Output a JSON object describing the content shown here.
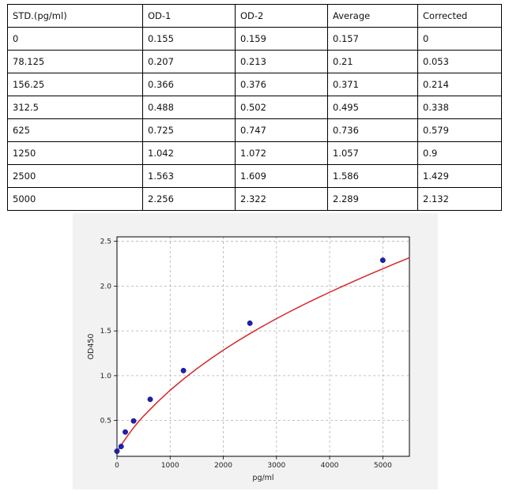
{
  "table": {
    "headers": [
      "STD.(pg/ml)",
      "OD-1",
      "OD-2",
      "Average",
      "Corrected"
    ],
    "rows": [
      [
        "0",
        "0.155",
        "0.159",
        "0.157",
        "0"
      ],
      [
        "78.125",
        "0.207",
        "0.213",
        "0.21",
        "0.053"
      ],
      [
        "156.25",
        "0.366",
        "0.376",
        "0.371",
        "0.214"
      ],
      [
        "312.5",
        "0.488",
        "0.502",
        "0.495",
        "0.338"
      ],
      [
        "625",
        "0.725",
        "0.747",
        "0.736",
        "0.579"
      ],
      [
        "1250",
        "1.042",
        "1.072",
        "1.057",
        "0.9"
      ],
      [
        "2500",
        "1.563",
        "1.609",
        "1.586",
        "1.429"
      ],
      [
        "5000",
        "2.256",
        "2.322",
        "2.289",
        "2.132"
      ]
    ]
  },
  "chart_data": {
    "type": "scatter",
    "title": "",
    "xlabel": "pg/ml",
    "ylabel": "OD450",
    "xlim": [
      0,
      5500
    ],
    "ylim": [
      0.1,
      2.55
    ],
    "xticks": [
      0,
      1000,
      2000,
      3000,
      4000,
      5000
    ],
    "yticks": [
      0.5,
      1.0,
      1.5,
      2.0,
      2.5
    ],
    "xtick_labels": [
      "0",
      "1000",
      "2000",
      "3000",
      "4000",
      "5000"
    ],
    "ytick_labels": [
      "0.5",
      "1.0",
      "1.5",
      "2.0",
      "2.5"
    ],
    "grid": true,
    "points": {
      "x": [
        0,
        78.125,
        156.25,
        312.5,
        625,
        1250,
        2500,
        5000
      ],
      "y": [
        0.157,
        0.21,
        0.371,
        0.495,
        0.736,
        1.057,
        1.586,
        2.289
      ]
    },
    "fit_curve": {
      "x": [
        0,
        100,
        200,
        300,
        400,
        500,
        750,
        1000,
        1250,
        1500,
        1750,
        2000,
        2250,
        2500,
        2750,
        3000,
        3250,
        3500,
        3750,
        4000,
        4250,
        4500,
        4750,
        5000,
        5250,
        5500
      ],
      "y": [
        0.15,
        0.244,
        0.33,
        0.41,
        0.483,
        0.549,
        0.7,
        0.837,
        0.962,
        1.077,
        1.184,
        1.285,
        1.38,
        1.47,
        1.555,
        1.637,
        1.715,
        1.79,
        1.862,
        1.932,
        2.0,
        2.066,
        2.131,
        2.194,
        2.256,
        2.317
      ]
    },
    "colors": {
      "curve": "#d62728",
      "marker": "#1f1fb4",
      "grid": "#b0b0b0"
    }
  }
}
